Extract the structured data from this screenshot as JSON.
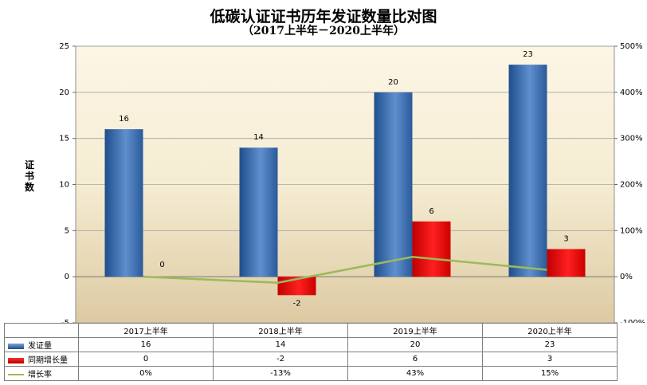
{
  "title": "低碳认证证书历年发证数量比对图",
  "subtitle": "（2017上半年－2020上半年）",
  "chart_data": {
    "type": "bar",
    "title": "低碳认证证书历年发证数量比对图",
    "subtitle": "（2017上半年－2020上半年）",
    "ylabel": "证书数",
    "categories": [
      "2017上半年",
      "2018上半年",
      "2019上半年",
      "2020上半年"
    ],
    "ylim": [
      -5,
      25
    ],
    "y_ticks": [
      "-5",
      "0",
      "5",
      "10",
      "15",
      "20",
      "25"
    ],
    "y2lim": [
      -100,
      500
    ],
    "y2_ticks": [
      "-100%",
      "0%",
      "100%",
      "200%",
      "300%",
      "400%",
      "500%"
    ],
    "grid": true,
    "series": [
      {
        "name": "发证量",
        "type": "bar",
        "axis": "left",
        "color": "#2e5f9e",
        "values": [
          16,
          14,
          20,
          23
        ],
        "labels": [
          "16",
          "14",
          "20",
          "23"
        ]
      },
      {
        "name": "同期增长量",
        "type": "bar",
        "axis": "left",
        "color": "#e00000",
        "values": [
          0,
          -2,
          6,
          3
        ],
        "labels": [
          "0",
          "-2",
          "6",
          "3"
        ]
      },
      {
        "name": "增长率",
        "type": "line",
        "axis": "right",
        "color": "#9bbb59",
        "values": [
          0,
          -13,
          43,
          15
        ],
        "labels": [
          "0%",
          "-13%",
          "43%",
          "15%"
        ]
      }
    ]
  }
}
